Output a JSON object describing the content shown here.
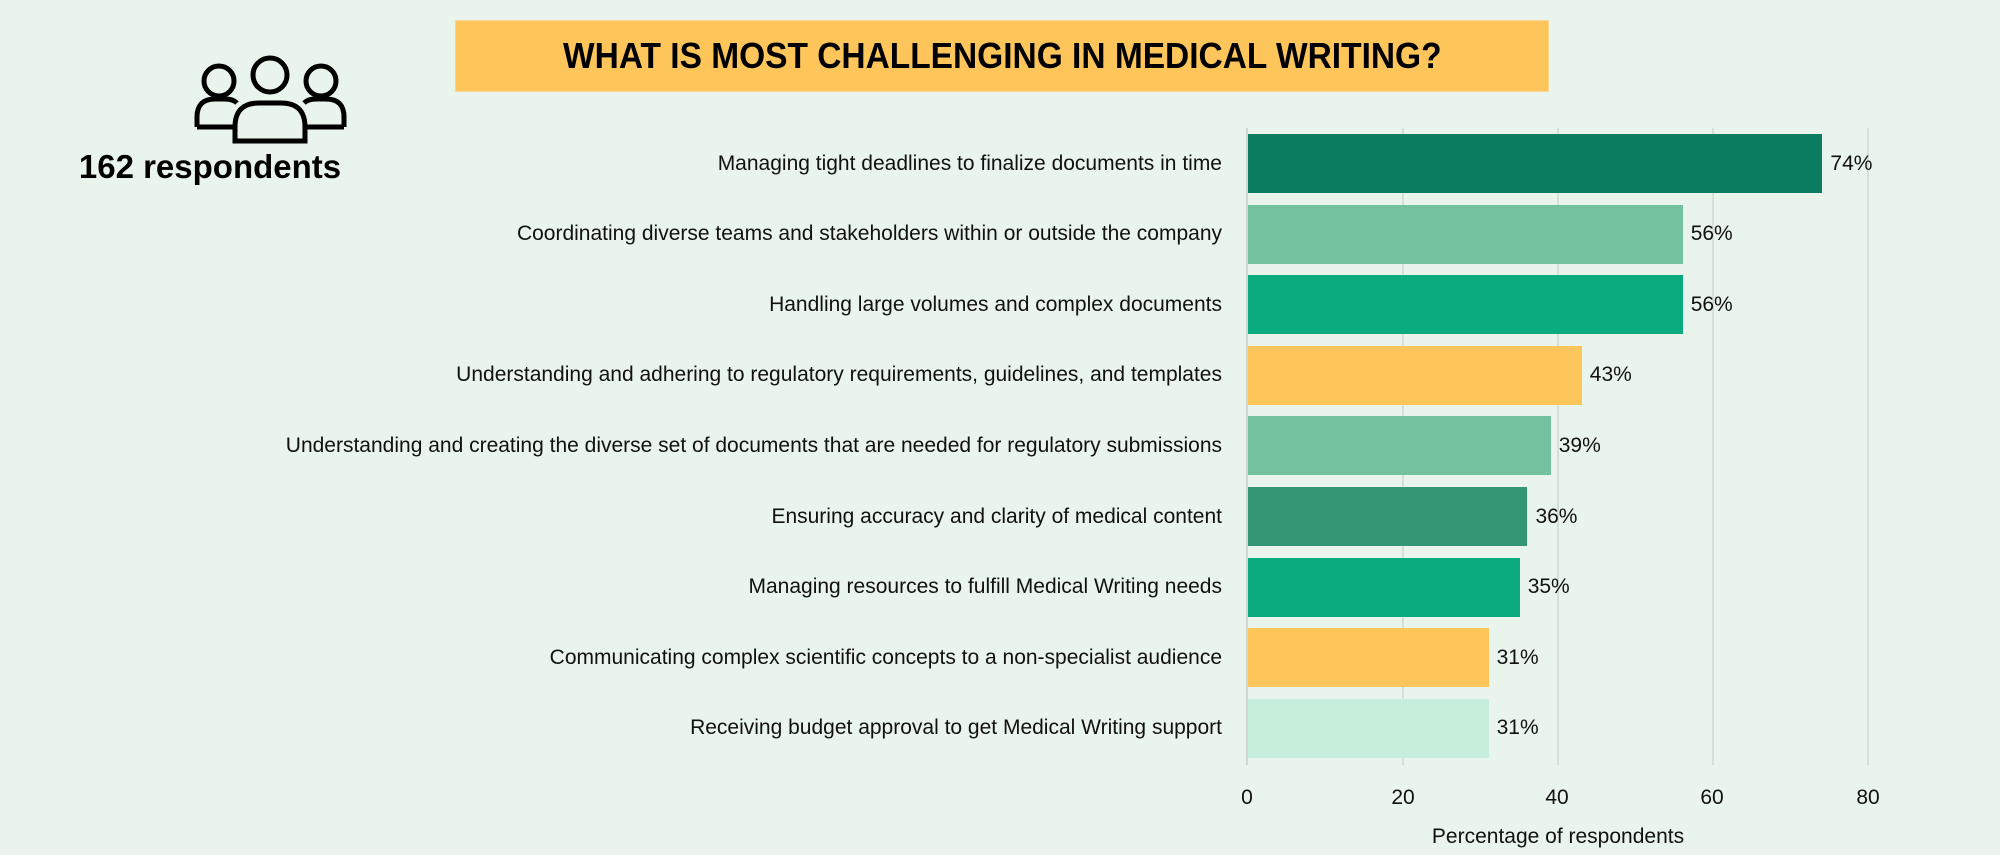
{
  "header": {
    "title": "WHAT IS MOST CHALLENGING IN MEDICAL WRITING?",
    "title_bg_color": "#fdc55a"
  },
  "respondents": {
    "icon": "people-group-icon",
    "label": "162 respondents"
  },
  "chart_data": {
    "type": "bar",
    "orientation": "horizontal",
    "title": "WHAT IS MOST CHALLENGING IN MEDICAL WRITING?",
    "subtitle": "162 respondents",
    "xlabel": "Percentage of respondents",
    "ylabel": "",
    "xlim": [
      0,
      80
    ],
    "xticks": [
      0,
      20,
      40,
      60,
      80
    ],
    "grid": "vertical",
    "legend": "none",
    "categories": [
      "Managing tight deadlines to finalize documents in time",
      "Coordinating diverse teams and stakeholders within or outside the company",
      "Handling large volumes and complex documents",
      "Understanding and adhering to regulatory requirements, guidelines, and templates",
      "Understanding and creating the diverse set of documents that are needed for regulatory submissions",
      "Ensuring accuracy and clarity of medical content",
      "Managing resources to fulfill Medical Writing needs",
      "Communicating complex scientific concepts to a non-specialist audience",
      "Receiving budget approval to get Medical Writing support"
    ],
    "values": [
      74,
      56,
      56,
      43,
      39,
      36,
      35,
      31,
      31
    ],
    "data_labels": [
      "74%",
      "56%",
      "56%",
      "43%",
      "39%",
      "36%",
      "35%",
      "31%",
      "31%"
    ],
    "colors": [
      "#0b7c5f",
      "#74c19f",
      "#0bab80",
      "#fdc55a",
      "#74c19f",
      "#349674",
      "#0bab80",
      "#fdc55a",
      "#c6eedb"
    ]
  },
  "axis": {
    "ticks": [
      "0",
      "20",
      "40",
      "60",
      "80"
    ],
    "xlabel": "Percentage of respondents"
  }
}
